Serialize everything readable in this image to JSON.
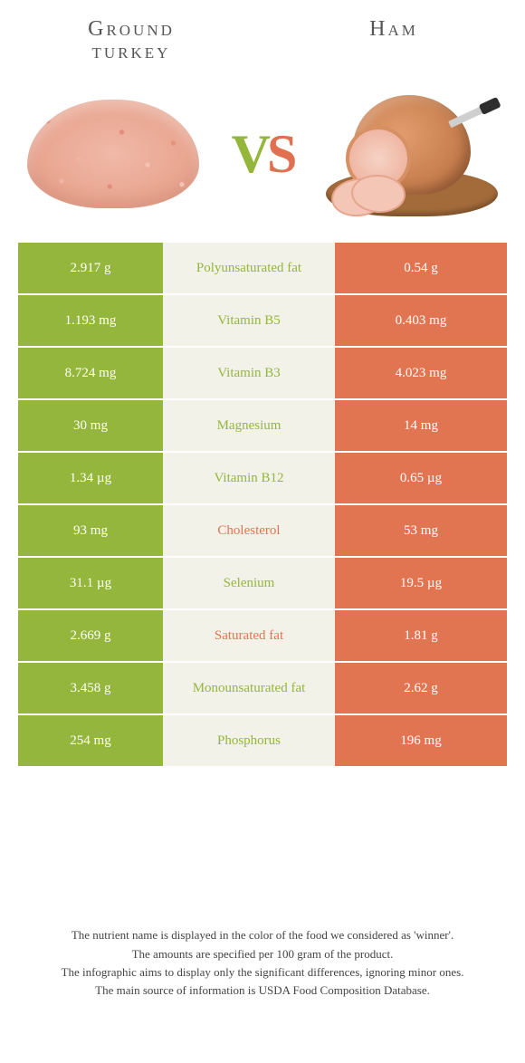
{
  "left_food": {
    "name_line1": "Ground",
    "name_line2": "turkey"
  },
  "right_food": {
    "name": "Ham"
  },
  "vs": {
    "v": "V",
    "s": "S"
  },
  "colors": {
    "left": "#94b63c",
    "right": "#e17552",
    "mid_bg": "#f2f2e9"
  },
  "rows": [
    {
      "label": "Polyunsaturated fat",
      "left": "2.917 g",
      "right": "0.54 g",
      "winner": "left"
    },
    {
      "label": "Vitamin B5",
      "left": "1.193 mg",
      "right": "0.403 mg",
      "winner": "left"
    },
    {
      "label": "Vitamin B3",
      "left": "8.724 mg",
      "right": "4.023 mg",
      "winner": "left"
    },
    {
      "label": "Magnesium",
      "left": "30 mg",
      "right": "14 mg",
      "winner": "left"
    },
    {
      "label": "Vitamin B12",
      "left": "1.34 µg",
      "right": "0.65 µg",
      "winner": "left"
    },
    {
      "label": "Cholesterol",
      "left": "93 mg",
      "right": "53 mg",
      "winner": "right"
    },
    {
      "label": "Selenium",
      "left": "31.1 µg",
      "right": "19.5 µg",
      "winner": "left"
    },
    {
      "label": "Saturated fat",
      "left": "2.669 g",
      "right": "1.81 g",
      "winner": "right"
    },
    {
      "label": "Monounsaturated fat",
      "left": "3.458 g",
      "right": "2.62 g",
      "winner": "left"
    },
    {
      "label": "Phosphorus",
      "left": "254 mg",
      "right": "196 mg",
      "winner": "left"
    }
  ],
  "footer": {
    "l1": "The nutrient name is displayed in the color of the food we considered as 'winner'.",
    "l2": "The amounts are specified per 100 gram of the product.",
    "l3": "The infographic aims to display only the significant differences, ignoring minor ones.",
    "l4": "The main source of information is USDA Food Composition Database."
  }
}
